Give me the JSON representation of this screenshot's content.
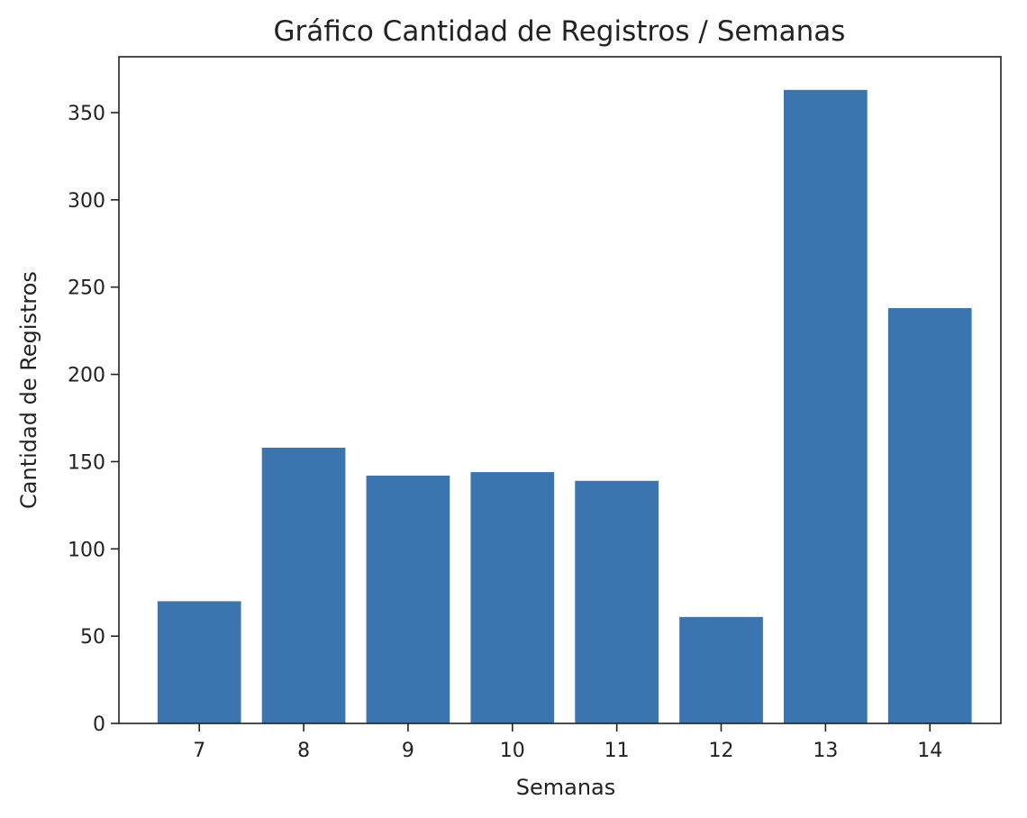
{
  "chart_data": {
    "type": "bar",
    "title": "Gráfico Cantidad de Registros / Semanas",
    "xlabel": "Semanas",
    "ylabel": "Cantidad de Registros",
    "categories": [
      "7",
      "8",
      "9",
      "10",
      "11",
      "12",
      "13",
      "14"
    ],
    "values": [
      70,
      158,
      142,
      144,
      139,
      61,
      363,
      238
    ],
    "ylim": [
      0,
      382
    ],
    "yticks": [
      0,
      50,
      100,
      150,
      200,
      250,
      300,
      350
    ],
    "grid": false,
    "legend": "none",
    "bar_color": "#3b75af"
  }
}
